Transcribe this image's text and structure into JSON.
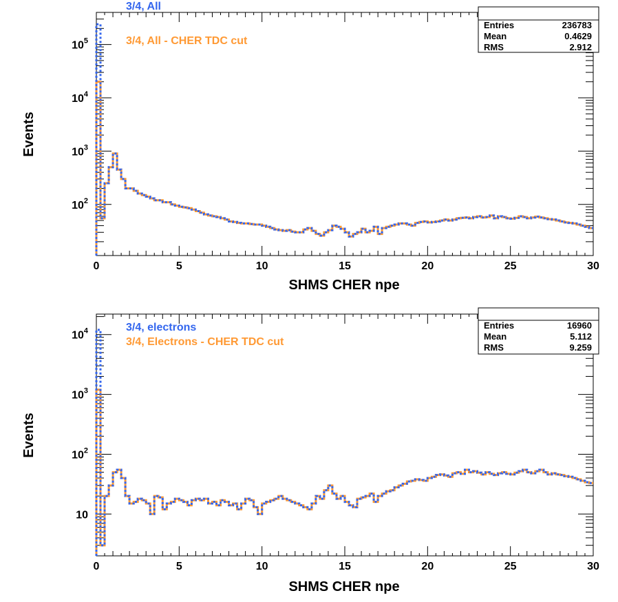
{
  "colors": {
    "all": "#3366ee",
    "cut": "#ff9933",
    "axis": "#000000"
  },
  "chart_data": [
    {
      "type": "histogram",
      "xlabel": "SHMS CHER npe",
      "ylabel": "Events",
      "xlim": [
        0,
        30
      ],
      "ylim": [
        11,
        400000
      ],
      "log_y": true,
      "legend_position": "top-left",
      "x_ticks": [
        "0",
        "5",
        "10",
        "15",
        "20",
        "25",
        "30"
      ],
      "y_ticks": [
        {
          "value": 100,
          "base": "10",
          "exp": "2"
        },
        {
          "value": 1000,
          "base": "10",
          "exp": "3"
        },
        {
          "value": 10000,
          "base": "10",
          "exp": "4"
        },
        {
          "value": 100000,
          "base": "10",
          "exp": "5"
        }
      ],
      "stats": {
        "entries_label": "Entries",
        "entries": "236783",
        "mean_label": "Mean",
        "mean": "0.4629",
        "rms_label": "RMS",
        "rms": "2.912"
      },
      "bin_width": 0.25,
      "series": [
        {
          "name": "3/4, All",
          "values": [
            240000,
            55,
            250,
            500,
            900,
            450,
            300,
            200,
            200,
            180,
            160,
            150,
            140,
            130,
            120,
            120,
            110,
            110,
            100,
            95,
            90,
            88,
            85,
            80,
            75,
            70,
            65,
            62,
            60,
            58,
            55,
            52,
            48,
            47,
            45,
            44,
            44,
            43,
            42,
            42,
            40,
            38,
            36,
            34,
            33,
            32,
            33,
            31,
            30,
            30,
            34,
            36,
            32,
            28,
            26,
            30,
            33,
            40,
            38,
            35,
            30,
            25,
            28,
            30,
            35,
            30,
            32,
            38,
            28,
            36,
            38,
            40,
            42,
            44,
            44,
            42,
            40,
            45,
            47,
            48,
            46,
            47,
            48,
            50,
            52,
            50,
            52,
            55,
            56,
            57,
            55,
            58,
            60,
            57,
            58,
            62,
            55,
            60,
            58,
            55,
            54,
            56,
            60,
            58,
            55,
            57,
            59,
            57,
            55,
            53,
            52,
            50,
            48,
            46,
            45,
            44,
            42,
            40,
            38,
            36
          ]
        },
        {
          "name": "3/4, All - CHER TDC cut",
          "values": [
            20000,
            55,
            250,
            500,
            900,
            450,
            300,
            200,
            200,
            180,
            160,
            150,
            140,
            130,
            120,
            120,
            110,
            110,
            100,
            95,
            90,
            88,
            85,
            80,
            75,
            70,
            65,
            62,
            60,
            58,
            55,
            52,
            48,
            47,
            45,
            44,
            44,
            43,
            42,
            42,
            40,
            38,
            36,
            34,
            33,
            32,
            33,
            31,
            30,
            30,
            34,
            36,
            32,
            28,
            26,
            30,
            33,
            40,
            38,
            35,
            30,
            25,
            28,
            30,
            35,
            30,
            32,
            38,
            28,
            36,
            38,
            40,
            42,
            44,
            44,
            42,
            40,
            45,
            47,
            48,
            46,
            47,
            48,
            50,
            52,
            50,
            52,
            55,
            56,
            57,
            55,
            58,
            60,
            57,
            58,
            62,
            55,
            60,
            58,
            55,
            54,
            56,
            60,
            58,
            55,
            57,
            59,
            57,
            55,
            53,
            52,
            50,
            48,
            46,
            45,
            44,
            42,
            40,
            38,
            36
          ]
        }
      ]
    },
    {
      "type": "histogram",
      "xlabel": "SHMS CHER npe",
      "ylabel": "Events",
      "xlim": [
        0,
        30
      ],
      "ylim": [
        2,
        22000
      ],
      "log_y": true,
      "legend_position": "top-left",
      "x_ticks": [
        "0",
        "5",
        "10",
        "15",
        "20",
        "25",
        "30"
      ],
      "y_ticks": [
        {
          "value": 10,
          "base": "10",
          "exp": ""
        },
        {
          "value": 100,
          "base": "10",
          "exp": "2"
        },
        {
          "value": 1000,
          "base": "10",
          "exp": "3"
        },
        {
          "value": 10000,
          "base": "10",
          "exp": "4"
        }
      ],
      "stats": {
        "entries_label": "Entries",
        "entries": "16960",
        "mean_label": "Mean",
        "mean": "5.112",
        "rms_label": "RMS",
        "rms": "9.259"
      },
      "bin_width": 0.25,
      "series": [
        {
          "name": "3/4, electrons",
          "values": [
            12000,
            3,
            20,
            30,
            50,
            55,
            40,
            20,
            15,
            16,
            18,
            17,
            15,
            10,
            20,
            19,
            12,
            15,
            16,
            18,
            17,
            16,
            14,
            17,
            18,
            17,
            18,
            15,
            16,
            14,
            17,
            16,
            14,
            15,
            12,
            15,
            18,
            17,
            13,
            10,
            15,
            16,
            17,
            18,
            20,
            18,
            17,
            16,
            15,
            14,
            13,
            12,
            15,
            20,
            18,
            25,
            30,
            22,
            18,
            20,
            16,
            14,
            13,
            18,
            19,
            20,
            22,
            16,
            20,
            22,
            24,
            25,
            28,
            30,
            32,
            35,
            36,
            38,
            37,
            36,
            40,
            42,
            45,
            46,
            44,
            42,
            48,
            50,
            47,
            55,
            50,
            52,
            49,
            46,
            50,
            47,
            45,
            48,
            50,
            47,
            46,
            49,
            52,
            55,
            50,
            48,
            52,
            55,
            50,
            46,
            48,
            46,
            45,
            43,
            42,
            40,
            38,
            36,
            34,
            33
          ]
        },
        {
          "name": "3/4, Electrons - CHER TDC cut",
          "values": [
            1200,
            3,
            20,
            30,
            50,
            55,
            40,
            20,
            15,
            16,
            18,
            17,
            15,
            10,
            20,
            19,
            12,
            15,
            16,
            18,
            17,
            16,
            14,
            17,
            18,
            17,
            18,
            15,
            16,
            14,
            17,
            16,
            14,
            15,
            12,
            15,
            18,
            17,
            13,
            10,
            15,
            16,
            17,
            18,
            20,
            18,
            17,
            16,
            15,
            14,
            13,
            12,
            15,
            20,
            18,
            25,
            30,
            22,
            18,
            20,
            16,
            14,
            13,
            18,
            19,
            20,
            22,
            16,
            20,
            22,
            24,
            25,
            28,
            30,
            32,
            35,
            36,
            38,
            37,
            36,
            40,
            42,
            45,
            46,
            44,
            42,
            48,
            50,
            47,
            55,
            50,
            52,
            49,
            46,
            50,
            47,
            45,
            48,
            50,
            47,
            46,
            49,
            52,
            55,
            50,
            48,
            52,
            55,
            50,
            46,
            48,
            46,
            45,
            43,
            42,
            40,
            38,
            36,
            34,
            33
          ]
        }
      ]
    }
  ]
}
